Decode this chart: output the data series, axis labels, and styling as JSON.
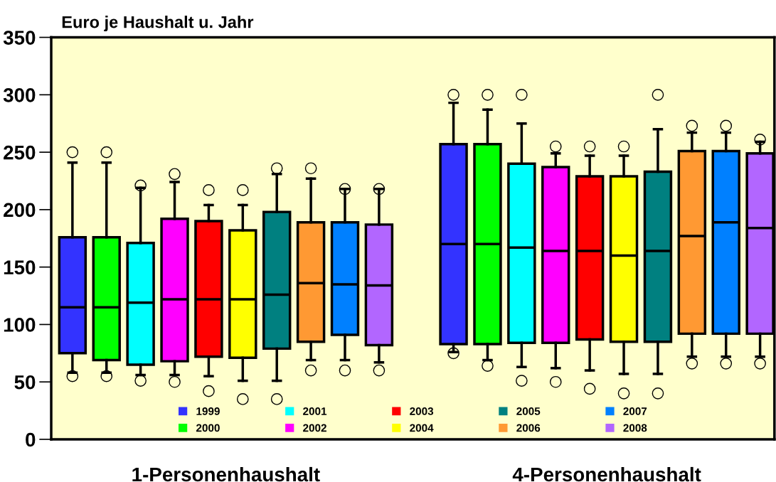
{
  "chart_data": {
    "type": "box",
    "ylabel": "Euro je Haushalt u. Jahr",
    "categories": [
      "1-Personenhaushalt",
      "4-Personenhaushalt"
    ],
    "ylim": [
      0,
      350
    ],
    "yticks": [
      0,
      50,
      100,
      150,
      200,
      250,
      300,
      350
    ],
    "grid": false,
    "legend": "bottom",
    "series": [
      {
        "name": "1999",
        "color": "#3333ff",
        "boxes": [
          {
            "low": 58,
            "q1": 75,
            "median": 115,
            "q3": 176,
            "high": 241,
            "outliers": [
              55,
              250
            ]
          },
          {
            "low": 76,
            "q1": 83,
            "median": 170,
            "q3": 257,
            "high": 293,
            "outliers": [
              75,
              300
            ]
          }
        ]
      },
      {
        "name": "2000",
        "color": "#00ff00",
        "boxes": [
          {
            "low": 58,
            "q1": 69,
            "median": 115,
            "q3": 176,
            "high": 241,
            "outliers": [
              55,
              250
            ]
          },
          {
            "low": 69,
            "q1": 83,
            "median": 170,
            "q3": 257,
            "high": 287,
            "outliers": [
              64,
              300
            ]
          }
        ]
      },
      {
        "name": "2001",
        "color": "#00ffff",
        "boxes": [
          {
            "low": 56,
            "q1": 65,
            "median": 119,
            "q3": 171,
            "high": 219,
            "outliers": [
              51,
              221
            ]
          },
          {
            "low": 63,
            "q1": 84,
            "median": 167,
            "q3": 240,
            "high": 275,
            "outliers": [
              51,
              300
            ]
          }
        ]
      },
      {
        "name": "2002",
        "color": "#ff00ff",
        "boxes": [
          {
            "low": 56,
            "q1": 68,
            "median": 122,
            "q3": 192,
            "high": 224,
            "outliers": [
              50,
              231
            ]
          },
          {
            "low": 62,
            "q1": 84,
            "median": 164,
            "q3": 237,
            "high": 249,
            "outliers": [
              50,
              255
            ]
          }
        ]
      },
      {
        "name": "2003",
        "color": "#ff0000",
        "boxes": [
          {
            "low": 55,
            "q1": 72,
            "median": 122,
            "q3": 190,
            "high": 204,
            "outliers": [
              42,
              217
            ]
          },
          {
            "low": 60,
            "q1": 87,
            "median": 164,
            "q3": 229,
            "high": 247,
            "outliers": [
              44,
              255
            ]
          }
        ]
      },
      {
        "name": "2004",
        "color": "#ffff00",
        "boxes": [
          {
            "low": 51,
            "q1": 71,
            "median": 122,
            "q3": 182,
            "high": 204,
            "outliers": [
              35,
              217
            ]
          },
          {
            "low": 57,
            "q1": 85,
            "median": 160,
            "q3": 229,
            "high": 247,
            "outliers": [
              40,
              255
            ]
          }
        ]
      },
      {
        "name": "2005",
        "color": "#008080",
        "boxes": [
          {
            "low": 51,
            "q1": 79,
            "median": 126,
            "q3": 198,
            "high": 231,
            "outliers": [
              35,
              236
            ]
          },
          {
            "low": 57,
            "q1": 85,
            "median": 164,
            "q3": 233,
            "high": 270,
            "outliers": [
              40,
              300
            ]
          }
        ]
      },
      {
        "name": "2006",
        "color": "#ff9933",
        "boxes": [
          {
            "low": 69,
            "q1": 85,
            "median": 136,
            "q3": 189,
            "high": 227,
            "outliers": [
              60,
              236
            ]
          },
          {
            "low": 72,
            "q1": 92,
            "median": 177,
            "q3": 251,
            "high": 267,
            "outliers": [
              66,
              273
            ]
          }
        ]
      },
      {
        "name": "2007",
        "color": "#0080ff",
        "boxes": [
          {
            "low": 69,
            "q1": 91,
            "median": 135,
            "q3": 189,
            "high": 218,
            "outliers": [
              60,
              218
            ]
          },
          {
            "low": 72,
            "q1": 92,
            "median": 189,
            "q3": 251,
            "high": 267,
            "outliers": [
              66,
              273
            ]
          }
        ]
      },
      {
        "name": "2008",
        "color": "#b266ff",
        "boxes": [
          {
            "low": 67,
            "q1": 82,
            "median": 134,
            "q3": 187,
            "high": 218,
            "outliers": [
              60,
              218
            ]
          },
          {
            "low": 72,
            "q1": 92,
            "median": 184,
            "q3": 249,
            "high": 259,
            "outliers": [
              66,
              261
            ]
          }
        ]
      }
    ]
  }
}
